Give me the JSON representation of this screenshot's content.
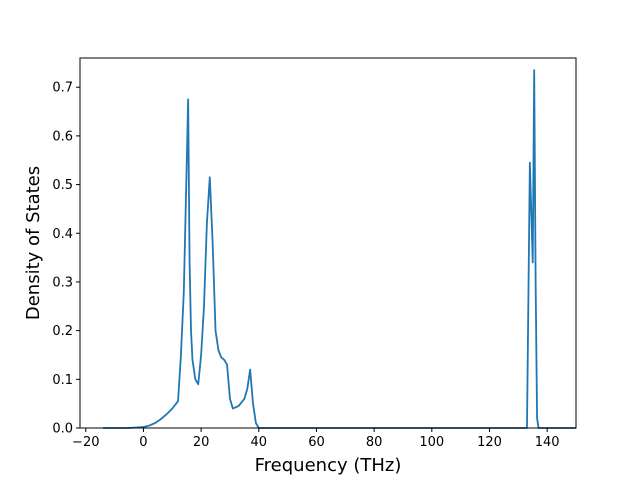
{
  "chart_data": {
    "type": "line",
    "title": "",
    "xlabel": "Frequency (THz)",
    "ylabel": "Density of States",
    "xlim": [
      -22,
      150
    ],
    "ylim": [
      0.0,
      0.76
    ],
    "grid": false,
    "line_color": "#1f77b4",
    "x_ticks": [
      -20,
      0,
      20,
      40,
      60,
      80,
      100,
      120,
      140
    ],
    "x_tick_labels": [
      "−20",
      "0",
      "20",
      "40",
      "60",
      "80",
      "100",
      "120",
      "140"
    ],
    "y_ticks": [
      0.0,
      0.1,
      0.2,
      0.3,
      0.4,
      0.5,
      0.6,
      0.7
    ],
    "y_tick_labels": [
      "0.0",
      "0.1",
      "0.2",
      "0.3",
      "0.4",
      "0.5",
      "0.6",
      "0.7"
    ],
    "series": [
      {
        "x": [
          -14,
          -5,
          0,
          2,
          4,
          6,
          8,
          10,
          12,
          13,
          14,
          15,
          15.5,
          16,
          16.5,
          17,
          18,
          19,
          20,
          21,
          22,
          23,
          24,
          25,
          26,
          27,
          28,
          29,
          30,
          31,
          33,
          35,
          36,
          37,
          38,
          39,
          40,
          60,
          80,
          100,
          120,
          133,
          134,
          135,
          135.5,
          136,
          136.5,
          137,
          140,
          150
        ],
        "y": [
          0.0,
          0.0,
          0.002,
          0.005,
          0.01,
          0.018,
          0.028,
          0.04,
          0.055,
          0.15,
          0.28,
          0.54,
          0.675,
          0.34,
          0.2,
          0.14,
          0.1,
          0.09,
          0.15,
          0.25,
          0.42,
          0.515,
          0.38,
          0.2,
          0.16,
          0.145,
          0.14,
          0.13,
          0.06,
          0.04,
          0.045,
          0.06,
          0.08,
          0.12,
          0.05,
          0.01,
          0.0,
          0.0,
          0.0,
          0.0,
          0.0,
          0.0,
          0.545,
          0.34,
          0.735,
          0.3,
          0.02,
          0.0,
          0.0,
          0.0
        ]
      }
    ]
  }
}
